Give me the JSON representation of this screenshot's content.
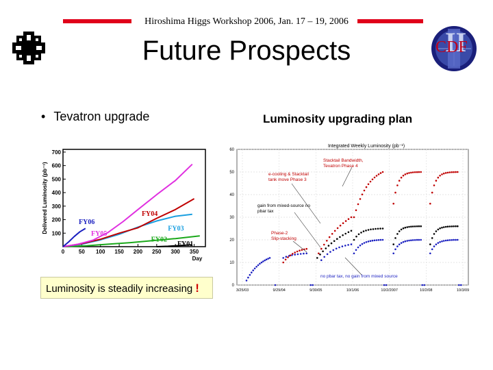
{
  "header": {
    "text": "Hiroshima Higgs Workshop 2006, Jan. 17 – 19, 2006"
  },
  "title": "Future Prospects",
  "bullet": {
    "symbol": "•",
    "text": "Tevatron upgrade"
  },
  "plan_title": "Luminosity upgrading plan",
  "note": {
    "text": "Luminosity is steadily increasing",
    "mark": "!"
  },
  "logos": {
    "left": "fermilab-logo",
    "right_text": "CDF",
    "right_letter": "II"
  },
  "colors": {
    "red_bar": "#e0001a",
    "cdf_blue": "#1a1f7a",
    "cdf_red": "#c0001a"
  },
  "chart_data": [
    {
      "type": "line",
      "ylabel": "Delivered Luminosity (pb⁻¹)",
      "xlabel": "Day",
      "xlim": [
        0,
        380
      ],
      "ylim": [
        0,
        720
      ],
      "x_ticks": [
        "0",
        "50",
        "100",
        "150",
        "200",
        "250",
        "300",
        "350"
      ],
      "y_ticks": [
        "100",
        "200",
        "300",
        "400",
        "500",
        "600",
        "700"
      ],
      "series": [
        {
          "name": "FY01",
          "color": "#000000",
          "label_color": "#000000",
          "label_pos": [
            305,
            5
          ],
          "points": [
            [
              250,
              0
            ],
            [
              280,
              3
            ],
            [
              310,
              8
            ],
            [
              345,
              14
            ]
          ]
        },
        {
          "name": "FY02",
          "color": "#1aa81a",
          "label_color": "#1aa81a",
          "label_pos": [
            235,
            38
          ],
          "points": [
            [
              0,
              0
            ],
            [
              60,
              6
            ],
            [
              120,
              18
            ],
            [
              180,
              30
            ],
            [
              240,
              45
            ],
            [
              300,
              60
            ],
            [
              365,
              80
            ]
          ]
        },
        {
          "name": "FY03",
          "color": "#1a9fe0",
          "label_color": "#1a9fe0",
          "label_pos": [
            280,
            118
          ],
          "points": [
            [
              0,
              0
            ],
            [
              50,
              18
            ],
            [
              100,
              50
            ],
            [
              150,
              92
            ],
            [
              200,
              145
            ],
            [
              250,
              190
            ],
            [
              300,
              225
            ],
            [
              345,
              240
            ]
          ]
        },
        {
          "name": "FY04",
          "color": "#c00000",
          "label_color": "#c00000",
          "label_pos": [
            210,
            228
          ],
          "points": [
            [
              0,
              0
            ],
            [
              50,
              22
            ],
            [
              100,
              55
            ],
            [
              150,
              100
            ],
            [
              200,
              140
            ],
            [
              250,
              210
            ],
            [
              300,
              275
            ],
            [
              350,
              355
            ]
          ]
        },
        {
          "name": "FY05",
          "color": "#e030e0",
          "label_color": "#e030e0",
          "label_pos": [
            75,
            82
          ],
          "points": [
            [
              0,
              0
            ],
            [
              40,
              18
            ],
            [
              80,
              48
            ],
            [
              120,
              105
            ],
            [
              160,
              185
            ],
            [
              200,
              275
            ],
            [
              250,
              385
            ],
            [
              300,
              490
            ],
            [
              345,
              610
            ]
          ]
        },
        {
          "name": "FY06",
          "color": "#1a1fc0",
          "label_color": "#1a1fc0",
          "label_pos": [
            42,
            168
          ],
          "points": [
            [
              0,
              0
            ],
            [
              15,
              35
            ],
            [
              30,
              75
            ],
            [
              45,
              110
            ],
            [
              60,
              135
            ]
          ]
        }
      ]
    },
    {
      "type": "scatter",
      "title": "Integrated Weekly Luminosity (pb⁻¹)",
      "ylim": [
        0,
        60
      ],
      "y_ticks": [
        "0",
        "10",
        "20",
        "30",
        "40",
        "50",
        "60"
      ],
      "x_ticks": [
        "3/25/03",
        "9/29/04",
        "9/30/05",
        "10/1/06",
        "10/2/2007",
        "10/2/08",
        "10/3/09"
      ],
      "annotations": [
        "Stacktail Bandwidth, Tevatron Phase 4",
        "e-cooling & Stacktail tank move  Phase 3",
        "gain from mixed-source no pbar tax",
        "Phase-2 Slip-stacking",
        "no pbar tax, no gain from mixed source"
      ],
      "series": [
        {
          "color": "#c00000",
          "name": ""
        },
        {
          "color": "#000000",
          "name": ""
        },
        {
          "color": "#1a1fc0",
          "name": ""
        }
      ]
    }
  ]
}
